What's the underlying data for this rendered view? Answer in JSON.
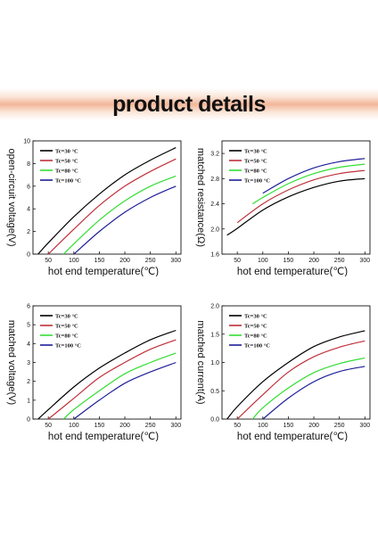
{
  "banner": {
    "title": "product details",
    "bg_color": "#fbe7da",
    "accent_color": "#f3b79a"
  },
  "series_colors": [
    "#000000",
    "#c0303a",
    "#33dd33",
    "#1e1e9a"
  ],
  "chart_data": [
    {
      "type": "line",
      "title": "",
      "ylabel": "open-circuit voltage(V)",
      "xlabel": "hot end temperature(℃)",
      "xlim": [
        20,
        310
      ],
      "ylim": [
        0,
        10
      ],
      "xticks": [
        "50",
        "100",
        "150",
        "200",
        "250",
        "300"
      ],
      "yticks": [
        "0",
        "2",
        "4",
        "6",
        "8",
        "10"
      ],
      "legend_position": "top-left",
      "series": [
        {
          "name": "Tc=30 °C",
          "x": [
            30,
            50,
            100,
            150,
            200,
            250,
            300
          ],
          "y": [
            0.0,
            1.0,
            3.3,
            5.3,
            7.0,
            8.3,
            9.4
          ]
        },
        {
          "name": "Tc=50 °C",
          "x": [
            50,
            100,
            150,
            200,
            250,
            300
          ],
          "y": [
            0.0,
            2.2,
            4.3,
            6.0,
            7.3,
            8.4
          ]
        },
        {
          "name": "Tc=80 °C",
          "x": [
            80,
            100,
            150,
            200,
            250,
            300
          ],
          "y": [
            0.0,
            0.9,
            3.0,
            4.7,
            6.0,
            6.9
          ]
        },
        {
          "name": "Tc=100 °C",
          "x": [
            100,
            150,
            200,
            250,
            300
          ],
          "y": [
            0.0,
            2.0,
            3.7,
            5.0,
            6.0
          ]
        }
      ]
    },
    {
      "type": "line",
      "title": "",
      "ylabel": "matched resistance(Ω)",
      "xlabel": "hot end temperature(℃)",
      "xlim": [
        20,
        310
      ],
      "ylim": [
        1.6,
        3.4
      ],
      "xticks": [
        "50",
        "100",
        "150",
        "200",
        "250",
        "300"
      ],
      "yticks": [
        "1.6",
        "2.0",
        "2.4",
        "2.8",
        "3.2"
      ],
      "legend_position": "top-left",
      "series": [
        {
          "name": "Tc=30 °C",
          "x": [
            30,
            50,
            100,
            150,
            200,
            250,
            300
          ],
          "y": [
            1.9,
            2.01,
            2.3,
            2.51,
            2.66,
            2.76,
            2.8
          ]
        },
        {
          "name": "Tc=50 °C",
          "x": [
            50,
            100,
            150,
            200,
            250,
            300
          ],
          "y": [
            2.1,
            2.4,
            2.62,
            2.78,
            2.88,
            2.93
          ]
        },
        {
          "name": "Tc=80 °C",
          "x": [
            80,
            100,
            150,
            200,
            250,
            300
          ],
          "y": [
            2.4,
            2.5,
            2.72,
            2.88,
            2.98,
            3.03
          ]
        },
        {
          "name": "Tc=100 °C",
          "x": [
            100,
            150,
            200,
            250,
            300
          ],
          "y": [
            2.57,
            2.8,
            2.97,
            3.07,
            3.12
          ]
        }
      ]
    },
    {
      "type": "line",
      "title": "",
      "ylabel": "matched voltage(V)",
      "xlabel": "hot end temperature(℃)",
      "xlim": [
        20,
        310
      ],
      "ylim": [
        0,
        6
      ],
      "xticks": [
        "50",
        "100",
        "150",
        "200",
        "250",
        "300"
      ],
      "yticks": [
        "0",
        "1",
        "2",
        "3",
        "4",
        "5",
        "6"
      ],
      "legend_position": "top-left",
      "series": [
        {
          "name": "Tc=30 °C",
          "x": [
            30,
            50,
            100,
            150,
            200,
            250,
            300
          ],
          "y": [
            0.0,
            0.5,
            1.7,
            2.7,
            3.5,
            4.2,
            4.7
          ]
        },
        {
          "name": "Tc=50 °C",
          "x": [
            50,
            100,
            150,
            200,
            250,
            300
          ],
          "y": [
            0.0,
            1.1,
            2.2,
            3.0,
            3.7,
            4.2
          ]
        },
        {
          "name": "Tc=80 °C",
          "x": [
            80,
            100,
            150,
            200,
            250,
            300
          ],
          "y": [
            0.0,
            0.5,
            1.5,
            2.4,
            3.0,
            3.5
          ]
        },
        {
          "name": "Tc=100 °C",
          "x": [
            100,
            150,
            200,
            250,
            300
          ],
          "y": [
            0.0,
            1.0,
            1.9,
            2.5,
            3.0
          ]
        }
      ]
    },
    {
      "type": "line",
      "title": "",
      "ylabel": "matched current(A)",
      "xlabel": "hot end temperature(℃)",
      "xlim": [
        20,
        310
      ],
      "ylim": [
        0,
        2.0
      ],
      "xticks": [
        "50",
        "100",
        "150",
        "200",
        "250",
        "300"
      ],
      "yticks": [
        "0.0",
        "0.5",
        "1.0",
        "1.5",
        "2.0"
      ],
      "legend_position": "top-left",
      "series": [
        {
          "name": "Tc=30 °C",
          "x": [
            30,
            50,
            100,
            150,
            200,
            250,
            300
          ],
          "y": [
            0.0,
            0.22,
            0.66,
            1.0,
            1.28,
            1.45,
            1.56
          ]
        },
        {
          "name": "Tc=50 °C",
          "x": [
            50,
            100,
            150,
            200,
            250,
            300
          ],
          "y": [
            0.0,
            0.43,
            0.83,
            1.1,
            1.27,
            1.38
          ]
        },
        {
          "name": "Tc=80 °C",
          "x": [
            80,
            100,
            150,
            200,
            250,
            300
          ],
          "y": [
            0.0,
            0.2,
            0.55,
            0.82,
            0.98,
            1.08
          ]
        },
        {
          "name": "Tc=100 °C",
          "x": [
            100,
            150,
            200,
            250,
            300
          ],
          "y": [
            0.0,
            0.37,
            0.66,
            0.84,
            0.93
          ]
        }
      ]
    }
  ]
}
